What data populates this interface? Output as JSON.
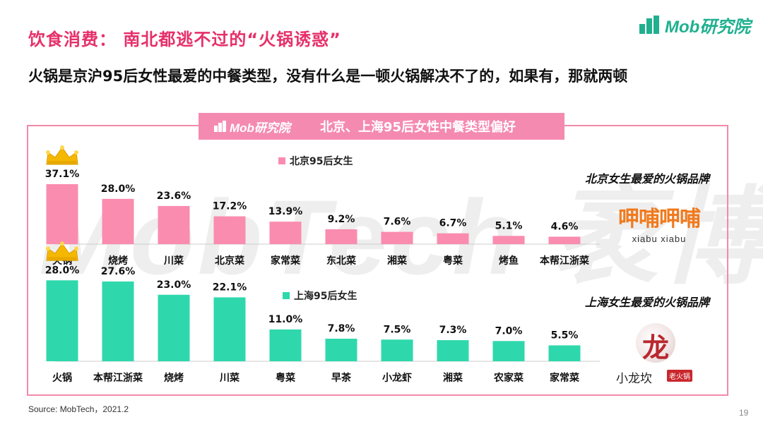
{
  "title": "饮食消费： 南北都逃不过的“火锅诱惑”",
  "subtitle": "火锅是京沪95后女性最爱的中餐类型，没有什么是一顿火锅解决不了的，如果有，那就两顿",
  "logo": {
    "text": "Mob研究院",
    "color": "#1fb08f"
  },
  "banner": {
    "logo_text": "Mob研究院",
    "title": "北京、上海95后女性中餐类型偏好"
  },
  "watermark": "MobTech 袤博",
  "brand_beijing": {
    "label": "北京女生最爱的火锅品牌",
    "name": "呷哺呷哺",
    "name_en": "xiabu xiabu"
  },
  "brand_shanghai": {
    "label": "上海女生最爱的火锅品牌",
    "char": "龙",
    "name": "小龙坎",
    "tag": "老火锅"
  },
  "source": "Source:  MobTech，2021.2",
  "page_number": "19",
  "colors": {
    "title": "#e6306b",
    "beijing": "#fa8caf",
    "shanghai": "#2ed8ac",
    "crown": "#f5b800",
    "panel_border": "#f28aa8"
  },
  "crown_icon": "crown-icon",
  "chart_data": [
    {
      "type": "bar",
      "legend": "北京95后女生",
      "categories": [
        "火锅",
        "烧烤",
        "川菜",
        "北京菜",
        "家常菜",
        "东北菜",
        "湘菜",
        "粤菜",
        "烤鱼",
        "本帮江浙菜"
      ],
      "values": [
        37.1,
        28.0,
        23.6,
        17.2,
        13.9,
        9.2,
        7.6,
        6.7,
        5.1,
        4.6
      ],
      "labels": [
        "37.1%",
        "28.0%",
        "23.6%",
        "17.2%",
        "13.9%",
        "9.2%",
        "7.6%",
        "6.7%",
        "5.1%",
        "4.6%"
      ],
      "color": "#fa8caf"
    },
    {
      "type": "bar",
      "legend": "上海95后女生",
      "categories": [
        "火锅",
        "本帮江浙菜",
        "烧烤",
        "川菜",
        "粤菜",
        "早茶",
        "小龙虾",
        "湘菜",
        "农家菜",
        "家常菜"
      ],
      "values": [
        28.0,
        27.6,
        23.0,
        22.1,
        11.0,
        7.8,
        7.5,
        7.3,
        7.0,
        5.5
      ],
      "labels": [
        "28.0%",
        "27.6%",
        "23.0%",
        "22.1%",
        "11.0%",
        "7.8%",
        "7.5%",
        "7.3%",
        "7.0%",
        "5.5%"
      ],
      "color": "#2ed8ac"
    }
  ]
}
